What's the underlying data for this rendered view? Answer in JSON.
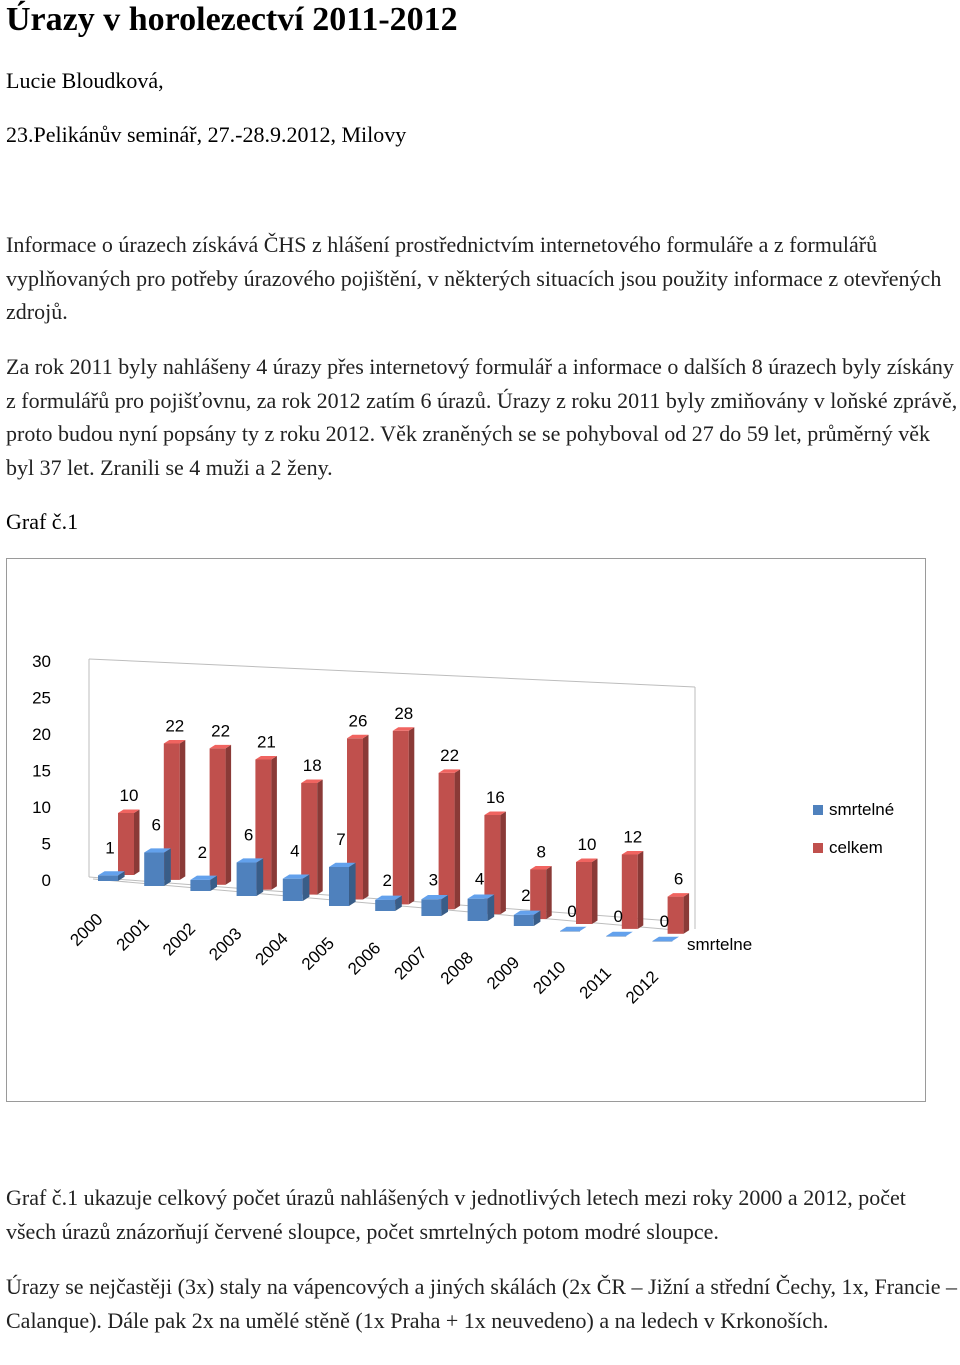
{
  "document": {
    "title": "Úrazy v horolezectví 2011-2012",
    "author": "Lucie Bloudková,",
    "event": "23.Pelikánův seminář, 27.-28.9.2012, Milovy",
    "paragraph1": "Informace o úrazech získává ČHS z hlášení prostřednictvím internetového formuláře a z formulářů vyplňovaných pro potřeby úrazového pojištění, v některých situacích jsou použity informace z otevřených zdrojů.",
    "paragraph2": "Za rok 2011 byly nahlášeny 4 úrazy přes internetový formulář a informace o dalších 8 úrazech byly získány z formulářů pro pojišťovnu, za rok 2012 zatím 6 úrazů. Úrazy z roku 2011 byly zmiňovány v loňské zprávě, proto budou nyní popsány ty z roku 2012. Věk zraněných se se pohyboval od 27 do 59 let, průměrný věk byl 37 let. Zranili se 4 muži a 2 ženy.",
    "graph_label": "Graf č.1",
    "paragraph3": "Graf č.1 ukazuje celkový počet úrazů nahlášených v jednotlivých letech mezi roky 2000 a 2012, počet všech úrazů znázorňují červené sloupce, počet smrtelných potom modré sloupce.",
    "paragraph4": "Úrazy se nejčastěji (3x) staly na vápencových a jiných skálách (2x ČR – Jižní a střední Čechy, 1x, Francie – Calanque). Dále pak 2x na umělé stěně (1x Praha + 1x neuvedeno) a na ledech v Krkonoších."
  },
  "chart_data": {
    "type": "bar",
    "categories": [
      "2000",
      "2001",
      "2002",
      "2003",
      "2004",
      "2005",
      "2006",
      "2007",
      "2008",
      "2009",
      "2010",
      "2011",
      "2012"
    ],
    "series": [
      {
        "name": "smrtelné",
        "values": [
          1,
          6,
          2,
          6,
          4,
          7,
          2,
          3,
          4,
          2,
          0,
          0,
          0
        ],
        "color": "#4f81bd"
      },
      {
        "name": "celkem",
        "values": [
          10,
          22,
          22,
          21,
          18,
          26,
          28,
          22,
          16,
          8,
          10,
          12,
          6
        ],
        "color": "#c0504d"
      }
    ],
    "yticks": [
      0,
      5,
      10,
      15,
      20,
      25,
      30
    ],
    "ylim": [
      0,
      30
    ],
    "depth_axis_label": "smrtelne",
    "legend_position": "right",
    "style": "3d"
  }
}
